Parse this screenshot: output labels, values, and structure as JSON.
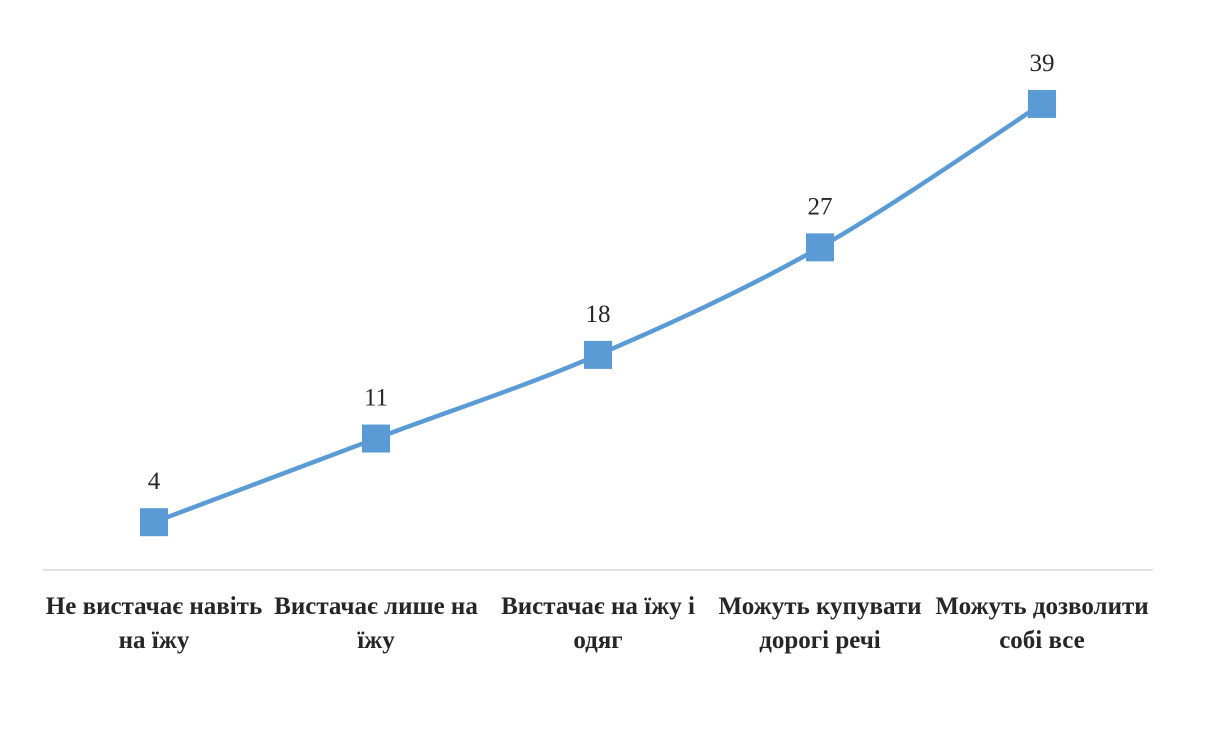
{
  "chart_data": {
    "type": "line",
    "categories": [
      "Не вистачає навіть на їжу",
      "Вистачає лише на їжу",
      "Вистачає на їжу і одяг",
      "Можуть купувати дорогі речі",
      "Можуть дозволити собі все"
    ],
    "values": [
      4,
      11,
      18,
      27,
      39
    ],
    "color": "#5b9bd5",
    "ylim": [
      0,
      40
    ],
    "smooth": true
  }
}
